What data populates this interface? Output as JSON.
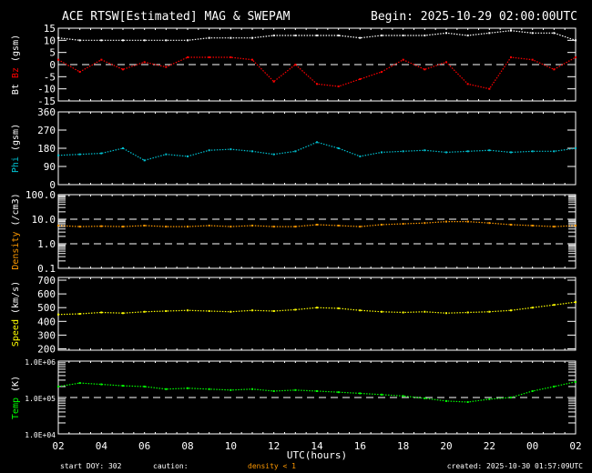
{
  "title": "ACE RTSW[Estimated] MAG & SWEPAM",
  "begin": "Begin: 2025-10-29 02:00:00UTC",
  "footer": {
    "start_doy": "start DOY: 302",
    "caution": "caution:",
    "caution_note": "density < 1",
    "created": "created: 2025-10-30 01:57:09UTC",
    "xlabel": "UTC(hours)"
  },
  "colors": {
    "bt": "#ffffff",
    "bz": "#ff0000",
    "phi": "#00c0d0",
    "density": "#ff9900",
    "speed": "#ffff00",
    "temp": "#00ff00",
    "axis": "#ffffff",
    "dashed": "#ffffff"
  },
  "chart_data": [
    {
      "type": "scatter",
      "id": "mag",
      "ylabel_parts": [
        "Bt",
        "Bz",
        "(gsm)"
      ],
      "ylim": [
        -15,
        15
      ],
      "yticks": [
        "15",
        "10",
        "5",
        "0",
        "-5",
        "-10",
        "-15"
      ],
      "ytick_values": [
        15,
        10,
        5,
        0,
        -5,
        -10,
        -15
      ],
      "dashed_lines": [
        0
      ],
      "x": [
        "02",
        "03",
        "04",
        "05",
        "06",
        "07",
        "08",
        "09",
        "10",
        "11",
        "12",
        "13",
        "14",
        "15",
        "16",
        "17",
        "18",
        "19",
        "20",
        "21",
        "22",
        "23",
        "00",
        "01",
        "02"
      ],
      "series": [
        {
          "name": "Bt",
          "values": [
            11,
            10,
            10,
            10,
            10,
            10,
            10,
            11,
            11,
            11,
            12,
            12,
            12,
            12,
            11,
            12,
            12,
            12,
            13,
            12,
            13,
            14,
            13,
            13,
            10
          ]
        },
        {
          "name": "Bz",
          "values": [
            2,
            -3,
            2,
            -2,
            1,
            -1,
            3,
            3,
            3,
            2,
            -7,
            0,
            -8,
            -9,
            -6,
            -3,
            2,
            -2,
            1,
            -8,
            -10,
            3,
            2,
            -2,
            3
          ]
        }
      ]
    },
    {
      "type": "scatter",
      "id": "phi",
      "ylabel": "Phi (gsm)",
      "ylim": [
        0,
        360
      ],
      "yticks": [
        "360",
        "270",
        "180",
        "90",
        "0"
      ],
      "ytick_values": [
        360,
        270,
        180,
        90,
        0
      ],
      "x": [
        "02",
        "03",
        "04",
        "05",
        "06",
        "07",
        "08",
        "09",
        "10",
        "11",
        "12",
        "13",
        "14",
        "15",
        "16",
        "17",
        "18",
        "19",
        "20",
        "21",
        "22",
        "23",
        "00",
        "01",
        "02"
      ],
      "series": [
        {
          "name": "Phi",
          "values": [
            145,
            150,
            155,
            180,
            120,
            150,
            140,
            170,
            175,
            165,
            150,
            165,
            210,
            180,
            140,
            160,
            165,
            170,
            160,
            165,
            170,
            160,
            165,
            165,
            180
          ]
        }
      ]
    },
    {
      "type": "scatter",
      "id": "density",
      "ylabel": "Density (/cm3)",
      "yscale": "log",
      "ylim": [
        0.1,
        100
      ],
      "yticks": [
        "100.0",
        "10.0",
        "1.0",
        "0.1"
      ],
      "ytick_values": [
        100,
        10,
        1,
        0.1
      ],
      "dashed_lines": [
        10,
        1
      ],
      "x": [
        "02",
        "03",
        "04",
        "05",
        "06",
        "07",
        "08",
        "09",
        "10",
        "11",
        "12",
        "13",
        "14",
        "15",
        "16",
        "17",
        "18",
        "19",
        "20",
        "21",
        "22",
        "23",
        "00",
        "01",
        "02"
      ],
      "series": [
        {
          "name": "Density",
          "values": [
            5.5,
            5,
            5.2,
            5,
            5.5,
            5,
            5,
            5.5,
            5,
            5.5,
            5,
            5,
            6,
            5.5,
            5,
            6,
            6.5,
            7,
            8,
            8,
            7,
            6,
            5.5,
            5,
            5.5
          ]
        }
      ]
    },
    {
      "type": "scatter",
      "id": "speed",
      "ylabel": "Speed (km/s)",
      "ylim": [
        190,
        720
      ],
      "yticks": [
        "700",
        "600",
        "500",
        "400",
        "300",
        "200"
      ],
      "ytick_values": [
        700,
        600,
        500,
        400,
        300,
        200
      ],
      "x": [
        "02",
        "03",
        "04",
        "05",
        "06",
        "07",
        "08",
        "09",
        "10",
        "11",
        "12",
        "13",
        "14",
        "15",
        "16",
        "17",
        "18",
        "19",
        "20",
        "21",
        "22",
        "23",
        "00",
        "01",
        "02"
      ],
      "series": [
        {
          "name": "Speed",
          "values": [
            450,
            455,
            465,
            460,
            470,
            475,
            480,
            475,
            470,
            480,
            475,
            485,
            500,
            495,
            480,
            470,
            465,
            470,
            460,
            465,
            470,
            480,
            500,
            520,
            540
          ]
        }
      ]
    },
    {
      "type": "scatter",
      "id": "temp",
      "ylabel": "Temp (K)",
      "yscale": "log",
      "ylim": [
        10000,
        1000000
      ],
      "yticks": [
        "1.0E+06",
        "1.0E+05",
        "1.0E+04"
      ],
      "ytick_values": [
        1000000,
        100000,
        10000
      ],
      "dashed_lines": [
        100000
      ],
      "x": [
        "02",
        "03",
        "04",
        "05",
        "06",
        "07",
        "08",
        "09",
        "10",
        "11",
        "12",
        "13",
        "14",
        "15",
        "16",
        "17",
        "18",
        "19",
        "20",
        "21",
        "22",
        "23",
        "00",
        "01",
        "02"
      ],
      "series": [
        {
          "name": "Temp",
          "values": [
            200000,
            250000,
            230000,
            210000,
            200000,
            170000,
            180000,
            170000,
            160000,
            170000,
            150000,
            160000,
            150000,
            140000,
            130000,
            120000,
            110000,
            95000,
            80000,
            75000,
            90000,
            100000,
            150000,
            200000,
            270000
          ]
        }
      ]
    }
  ],
  "xticks": [
    "02",
    "04",
    "06",
    "08",
    "10",
    "12",
    "14",
    "16",
    "18",
    "20",
    "22",
    "00",
    "02"
  ]
}
